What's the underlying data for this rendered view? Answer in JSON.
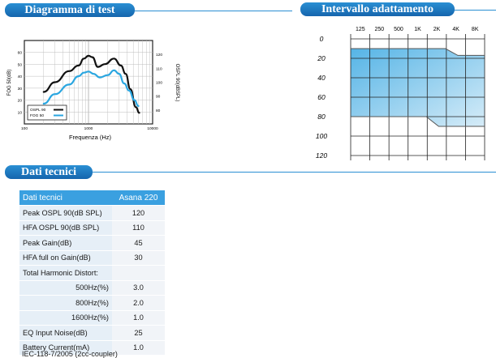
{
  "header_left": "Diagramma di test",
  "header_right": "Intervallo adattamento",
  "header_data": "Dati tecnici",
  "test_chart": {
    "y_left_label": "FOG 50(dB)",
    "y_right_label": "OSPL 90(dBSPL)",
    "x_label": "Frequenza (Hz)",
    "legend": [
      "OSPL 90",
      "FOG 50"
    ]
  },
  "fit_chart": {
    "freq_labels": [
      "125",
      "250",
      "500",
      "1K",
      "2K",
      "4K",
      "8K"
    ],
    "level_labels": [
      "0",
      "20",
      "40",
      "60",
      "80",
      "100",
      "120"
    ]
  },
  "chart_data": [
    {
      "type": "line",
      "xscale": "log",
      "xlabel": "Frequenza (Hz)",
      "ylabel": "FOG 50(dB)",
      "y2label": "OSPL 90(dBSPL)",
      "xlim": [
        100,
        10000
      ],
      "ylim": [
        0,
        70
      ],
      "y2lim": [
        70,
        130
      ],
      "x_ticks": [
        "100",
        "1000",
        "10000"
      ],
      "y_ticks": [
        10,
        20,
        30,
        40,
        50,
        60
      ],
      "y2_ticks": [
        80,
        90,
        100,
        110,
        120
      ],
      "grid": true,
      "legend_position": "bottom-left",
      "series": [
        {
          "name": "OSPL 90",
          "color": "#111111",
          "axis": "right",
          "x": [
            200,
            300,
            500,
            700,
            850,
            1000,
            1150,
            1400,
            1800,
            2500,
            3200,
            3800,
            4500,
            5500,
            6200
          ],
          "y": [
            93,
            100,
            108,
            112,
            117,
            119,
            118,
            111,
            113,
            117,
            112,
            106,
            95,
            82,
            78
          ]
        },
        {
          "name": "FOG 50",
          "color": "#2aa6e0",
          "axis": "left",
          "x": [
            200,
            300,
            500,
            700,
            850,
            1000,
            1200,
            1500,
            2000,
            2500,
            3000,
            3600,
            4300,
            5200,
            6000
          ],
          "y": [
            17,
            25,
            33,
            40,
            43,
            44,
            42,
            39,
            41,
            45,
            42,
            34,
            28,
            20,
            15
          ]
        }
      ]
    },
    {
      "type": "area",
      "xlabel": "",
      "ylabel": "",
      "categories": [
        "125",
        "250",
        "500",
        "1K",
        "2K",
        "4K",
        "8K"
      ],
      "y_reversed": true,
      "ylim": [
        -5,
        125
      ],
      "grid": true,
      "fitting_range": {
        "upper_boundary": [
          10,
          10,
          10,
          10,
          10,
          17,
          17
        ],
        "lower_boundary": [
          80,
          80,
          80,
          80,
          90,
          90,
          90
        ]
      }
    }
  ],
  "specs": {
    "header": [
      "Dati tecnici",
      "Asana 220"
    ],
    "rows": [
      {
        "label": "Peak OSPL 90(dB SPL)",
        "value": "120"
      },
      {
        "label": "HFA OSPL 90(dB SPL)",
        "value": "110"
      },
      {
        "label": "Peak Gain(dB)",
        "value": "45"
      },
      {
        "label": "HFA  full on Gain(dB)",
        "value": "30"
      },
      {
        "label": "Total Harmonic Distort:",
        "value": ""
      },
      {
        "label": "500Hz(%)",
        "value": "3.0"
      },
      {
        "label": "800Hz(%)",
        "value": "2.0"
      },
      {
        "label": "1600Hz(%)",
        "value": "1.0"
      },
      {
        "label": "EQ Input Noise(dB)",
        "value": "25"
      },
      {
        "label": "Battery Current(mA)",
        "value": "1.0"
      }
    ],
    "note": "IEC-118-7/2005 (2cc-coupler)"
  },
  "colors": {
    "accent": "#2a8fd3",
    "fog": "#2aa6e0",
    "fill": "#6fc1ea"
  }
}
